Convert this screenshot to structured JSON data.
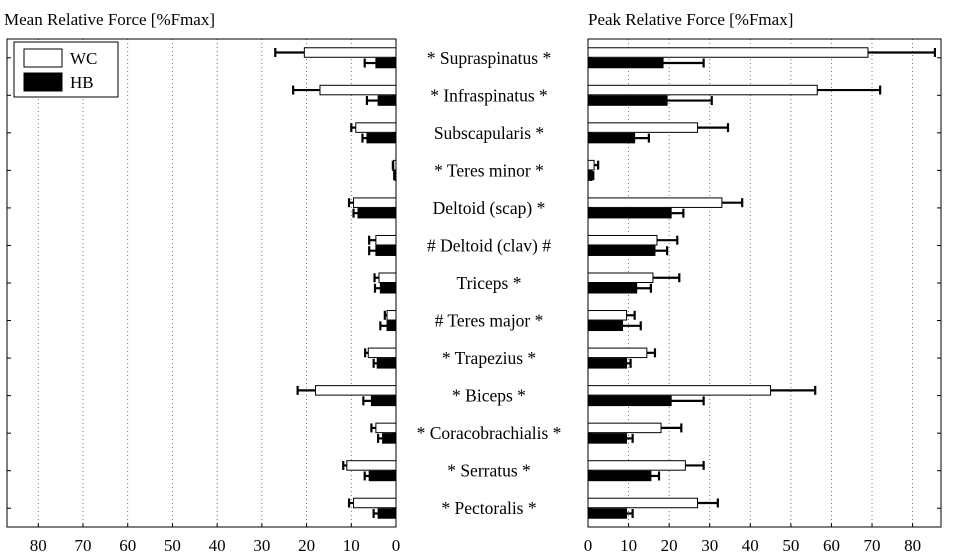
{
  "chart_data": [
    {
      "type": "bar",
      "orientation": "horizontal",
      "title": "Mean Relative Force [%Fmax]",
      "x_reversed": true,
      "xlim": [
        0,
        87
      ],
      "xticks": [
        "80",
        "70",
        "60",
        "50",
        "40",
        "30",
        "20",
        "10",
        "0"
      ],
      "grid": "vertical-dotted",
      "legend": {
        "position": "top-left",
        "entries": [
          "WC",
          "HB"
        ]
      },
      "categories": [
        "* Supraspinatus *",
        "* Infraspinatus *",
        "Subscapularis *",
        "* Teres minor *",
        "Deltoid (scap) *",
        "# Deltoid (clav) #",
        "Triceps *",
        "# Teres major *",
        "* Trapezius *",
        "* Biceps *",
        "* Coracobrachialis *",
        "* Serratus *",
        "* Pectoralis *"
      ],
      "series": [
        {
          "name": "WC",
          "color": "#ffffff",
          "values": [
            20.5,
            17.0,
            9.0,
            0.5,
            9.5,
            4.5,
            3.8,
            2.0,
            6.2,
            18.0,
            4.5,
            11.0,
            9.5
          ],
          "errors": [
            6.5,
            6.0,
            1.0,
            0.2,
            1.0,
            1.5,
            1.0,
            0.5,
            0.7,
            4.0,
            1.0,
            0.8,
            1.0
          ]
        },
        {
          "name": "HB",
          "color": "#000000",
          "values": [
            4.5,
            4.0,
            6.5,
            0.3,
            8.5,
            4.5,
            3.5,
            2.0,
            4.2,
            5.5,
            3.0,
            6.0,
            4.0
          ],
          "errors": [
            2.5,
            2.5,
            1.0,
            0.1,
            1.0,
            1.5,
            1.2,
            1.5,
            0.8,
            1.8,
            1.0,
            1.0,
            1.0
          ]
        }
      ]
    },
    {
      "type": "bar",
      "orientation": "horizontal",
      "title": "Peak Relative Force [%Fmax]",
      "xlim": [
        0,
        87
      ],
      "xticks": [
        "0",
        "10",
        "20",
        "30",
        "40",
        "50",
        "60",
        "70",
        "80"
      ],
      "grid": "vertical-dotted",
      "categories": [
        "* Supraspinatus *",
        "* Infraspinatus *",
        "Subscapularis *",
        "* Teres minor *",
        "Deltoid (scap) *",
        "# Deltoid (clav) #",
        "Triceps *",
        "# Teres major *",
        "* Trapezius *",
        "* Biceps *",
        "* Coracobrachialis *",
        "* Serratus *",
        "* Pectoralis *"
      ],
      "series": [
        {
          "name": "WC",
          "color": "#ffffff",
          "values": [
            69.0,
            56.5,
            27.0,
            1.5,
            33.0,
            17.0,
            16.0,
            9.5,
            14.5,
            45.0,
            18.0,
            24.0,
            27.0
          ],
          "errors": [
            16.5,
            15.5,
            7.5,
            1.0,
            5.0,
            5.0,
            6.5,
            2.0,
            2.0,
            11.0,
            5.0,
            4.5,
            5.0
          ]
        },
        {
          "name": "HB",
          "color": "#000000",
          "values": [
            18.5,
            19.5,
            11.5,
            1.0,
            20.5,
            16.5,
            12.0,
            8.5,
            9.5,
            20.5,
            9.5,
            15.5,
            9.5
          ],
          "errors": [
            10.0,
            11.0,
            3.5,
            0.3,
            3.0,
            3.0,
            3.5,
            4.5,
            1.0,
            8.0,
            1.5,
            2.0,
            1.5
          ]
        }
      ]
    }
  ]
}
